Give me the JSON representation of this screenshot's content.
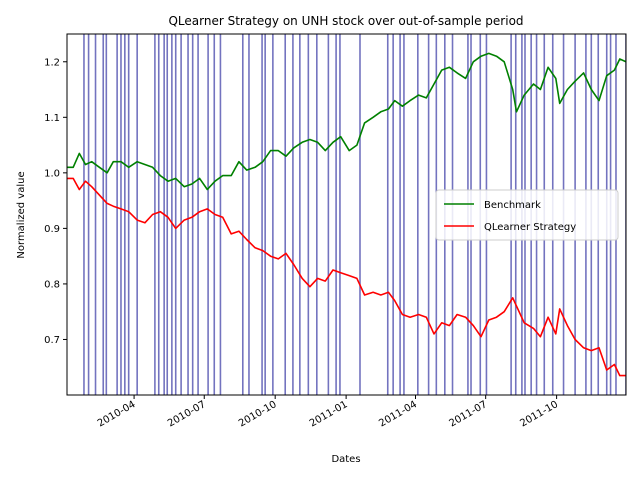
{
  "chart_data": {
    "type": "line",
    "title": "QLearner Strategy on UNH stock over out-of-sample period",
    "xlabel": "Dates",
    "ylabel": "Normalized value",
    "xlim": [
      "2010-01-04",
      "2011-12-30"
    ],
    "ylim": [
      0.6,
      1.25
    ],
    "x_ticks": [
      "2010-04",
      "2010-07",
      "2010-10",
      "2011-01",
      "2011-04",
      "2011-07",
      "2011-10"
    ],
    "y_ticks": [
      0.7,
      0.8,
      0.9,
      1.0,
      1.1,
      1.2
    ],
    "y_tick_labels": [
      "0.7",
      "0.8",
      "0.9",
      "1.0",
      "1.1",
      "1.2"
    ],
    "grid": false,
    "legend_position": "center-right",
    "series": [
      {
        "name": "Benchmark",
        "color": "#008000",
        "points": [
          [
            "2010-01-04",
            1.01
          ],
          [
            "2010-01-12",
            1.01
          ],
          [
            "2010-01-20",
            1.035
          ],
          [
            "2010-01-28",
            1.015
          ],
          [
            "2010-02-05",
            1.02
          ],
          [
            "2010-02-15",
            1.01
          ],
          [
            "2010-02-25",
            1.0
          ],
          [
            "2010-03-05",
            1.02
          ],
          [
            "2010-03-15",
            1.02
          ],
          [
            "2010-03-25",
            1.01
          ],
          [
            "2010-04-05",
            1.02
          ],
          [
            "2010-04-15",
            1.015
          ],
          [
            "2010-04-25",
            1.01
          ],
          [
            "2010-05-05",
            0.995
          ],
          [
            "2010-05-15",
            0.985
          ],
          [
            "2010-05-25",
            0.99
          ],
          [
            "2010-06-05",
            0.975
          ],
          [
            "2010-06-15",
            0.98
          ],
          [
            "2010-06-25",
            0.99
          ],
          [
            "2010-07-05",
            0.97
          ],
          [
            "2010-07-15",
            0.985
          ],
          [
            "2010-07-25",
            0.995
          ],
          [
            "2010-08-05",
            0.995
          ],
          [
            "2010-08-15",
            1.02
          ],
          [
            "2010-08-25",
            1.005
          ],
          [
            "2010-09-05",
            1.01
          ],
          [
            "2010-09-15",
            1.02
          ],
          [
            "2010-09-25",
            1.04
          ],
          [
            "2010-10-05",
            1.04
          ],
          [
            "2010-10-15",
            1.03
          ],
          [
            "2010-10-25",
            1.045
          ],
          [
            "2010-11-05",
            1.055
          ],
          [
            "2010-11-15",
            1.06
          ],
          [
            "2010-11-25",
            1.055
          ],
          [
            "2010-12-05",
            1.04
          ],
          [
            "2010-12-15",
            1.055
          ],
          [
            "2010-12-25",
            1.065
          ],
          [
            "2011-01-05",
            1.04
          ],
          [
            "2011-01-15",
            1.05
          ],
          [
            "2011-01-25",
            1.09
          ],
          [
            "2011-02-05",
            1.1
          ],
          [
            "2011-02-15",
            1.11
          ],
          [
            "2011-02-25",
            1.115
          ],
          [
            "2011-03-05",
            1.13
          ],
          [
            "2011-03-15",
            1.12
          ],
          [
            "2011-03-25",
            1.13
          ],
          [
            "2011-04-05",
            1.14
          ],
          [
            "2011-04-15",
            1.135
          ],
          [
            "2011-04-25",
            1.16
          ],
          [
            "2011-05-05",
            1.185
          ],
          [
            "2011-05-15",
            1.19
          ],
          [
            "2011-05-25",
            1.18
          ],
          [
            "2011-06-05",
            1.17
          ],
          [
            "2011-06-15",
            1.2
          ],
          [
            "2011-06-25",
            1.21
          ],
          [
            "2011-07-05",
            1.215
          ],
          [
            "2011-07-15",
            1.21
          ],
          [
            "2011-07-25",
            1.2
          ],
          [
            "2011-08-05",
            1.15
          ],
          [
            "2011-08-10",
            1.11
          ],
          [
            "2011-08-20",
            1.14
          ],
          [
            "2011-09-01",
            1.16
          ],
          [
            "2011-09-10",
            1.15
          ],
          [
            "2011-09-20",
            1.19
          ],
          [
            "2011-09-30",
            1.17
          ],
          [
            "2011-10-05",
            1.125
          ],
          [
            "2011-10-15",
            1.15
          ],
          [
            "2011-10-25",
            1.165
          ],
          [
            "2011-11-05",
            1.18
          ],
          [
            "2011-11-15",
            1.15
          ],
          [
            "2011-11-25",
            1.13
          ],
          [
            "2011-12-05",
            1.175
          ],
          [
            "2011-12-15",
            1.185
          ],
          [
            "2011-12-22",
            1.205
          ],
          [
            "2011-12-30",
            1.2
          ]
        ]
      },
      {
        "name": "QLearner Strategy",
        "color": "#ff0000",
        "points": [
          [
            "2010-01-04",
            0.99
          ],
          [
            "2010-01-12",
            0.99
          ],
          [
            "2010-01-20",
            0.97
          ],
          [
            "2010-01-28",
            0.985
          ],
          [
            "2010-02-05",
            0.975
          ],
          [
            "2010-02-15",
            0.96
          ],
          [
            "2010-02-25",
            0.945
          ],
          [
            "2010-03-05",
            0.94
          ],
          [
            "2010-03-15",
            0.935
          ],
          [
            "2010-03-25",
            0.93
          ],
          [
            "2010-04-05",
            0.915
          ],
          [
            "2010-04-15",
            0.91
          ],
          [
            "2010-04-25",
            0.925
          ],
          [
            "2010-05-05",
            0.93
          ],
          [
            "2010-05-15",
            0.92
          ],
          [
            "2010-05-25",
            0.9
          ],
          [
            "2010-06-05",
            0.915
          ],
          [
            "2010-06-15",
            0.92
          ],
          [
            "2010-06-25",
            0.93
          ],
          [
            "2010-07-05",
            0.935
          ],
          [
            "2010-07-15",
            0.925
          ],
          [
            "2010-07-25",
            0.92
          ],
          [
            "2010-08-05",
            0.89
          ],
          [
            "2010-08-15",
            0.895
          ],
          [
            "2010-08-25",
            0.88
          ],
          [
            "2010-09-05",
            0.865
          ],
          [
            "2010-09-15",
            0.86
          ],
          [
            "2010-09-25",
            0.85
          ],
          [
            "2010-10-05",
            0.845
          ],
          [
            "2010-10-15",
            0.855
          ],
          [
            "2010-10-25",
            0.835
          ],
          [
            "2010-11-05",
            0.81
          ],
          [
            "2010-11-15",
            0.795
          ],
          [
            "2010-11-25",
            0.81
          ],
          [
            "2010-12-05",
            0.805
          ],
          [
            "2010-12-15",
            0.825
          ],
          [
            "2010-12-25",
            0.82
          ],
          [
            "2011-01-05",
            0.815
          ],
          [
            "2011-01-15",
            0.81
          ],
          [
            "2011-01-25",
            0.78
          ],
          [
            "2011-02-05",
            0.785
          ],
          [
            "2011-02-15",
            0.78
          ],
          [
            "2011-02-25",
            0.785
          ],
          [
            "2011-03-05",
            0.77
          ],
          [
            "2011-03-15",
            0.745
          ],
          [
            "2011-03-25",
            0.74
          ],
          [
            "2011-04-05",
            0.745
          ],
          [
            "2011-04-15",
            0.74
          ],
          [
            "2011-04-25",
            0.71
          ],
          [
            "2011-05-05",
            0.73
          ],
          [
            "2011-05-15",
            0.725
          ],
          [
            "2011-05-25",
            0.745
          ],
          [
            "2011-06-05",
            0.74
          ],
          [
            "2011-06-15",
            0.725
          ],
          [
            "2011-06-25",
            0.705
          ],
          [
            "2011-07-05",
            0.735
          ],
          [
            "2011-07-15",
            0.74
          ],
          [
            "2011-07-25",
            0.75
          ],
          [
            "2011-08-05",
            0.775
          ],
          [
            "2011-08-10",
            0.76
          ],
          [
            "2011-08-20",
            0.73
          ],
          [
            "2011-09-01",
            0.72
          ],
          [
            "2011-09-10",
            0.705
          ],
          [
            "2011-09-20",
            0.74
          ],
          [
            "2011-09-30",
            0.71
          ],
          [
            "2011-10-05",
            0.755
          ],
          [
            "2011-10-15",
            0.725
          ],
          [
            "2011-10-25",
            0.7
          ],
          [
            "2011-11-05",
            0.685
          ],
          [
            "2011-11-15",
            0.68
          ],
          [
            "2011-11-25",
            0.685
          ],
          [
            "2011-12-05",
            0.645
          ],
          [
            "2011-12-15",
            0.655
          ],
          [
            "2011-12-22",
            0.635
          ],
          [
            "2011-12-30",
            0.635
          ]
        ]
      }
    ],
    "trade_lines": {
      "color": "#00008b",
      "dates": [
        "2010-01-26",
        "2010-02-01",
        "2010-02-10",
        "2010-02-20",
        "2010-02-24",
        "2010-03-10",
        "2010-03-15",
        "2010-03-20",
        "2010-03-25",
        "2010-04-05",
        "2010-04-28",
        "2010-05-03",
        "2010-05-10",
        "2010-05-14",
        "2010-05-20",
        "2010-05-25",
        "2010-06-01",
        "2010-06-10",
        "2010-06-16",
        "2010-06-23",
        "2010-07-06",
        "2010-07-14",
        "2010-07-22",
        "2010-08-20",
        "2010-08-28",
        "2010-09-14",
        "2010-09-18",
        "2010-09-28",
        "2010-10-14",
        "2010-10-24",
        "2010-11-02",
        "2010-11-13",
        "2010-11-24",
        "2010-12-09",
        "2010-12-19",
        "2010-12-24",
        "2011-01-19",
        "2011-02-24",
        "2011-03-03",
        "2011-03-12",
        "2011-03-17",
        "2011-04-04",
        "2011-04-18",
        "2011-04-28",
        "2011-05-09",
        "2011-05-19",
        "2011-06-08",
        "2011-06-12",
        "2011-06-24",
        "2011-07-02",
        "2011-08-03",
        "2011-08-09",
        "2011-08-17",
        "2011-08-21",
        "2011-08-29",
        "2011-09-05",
        "2011-09-15",
        "2011-09-26",
        "2011-10-10",
        "2011-10-25",
        "2011-11-08",
        "2011-11-15",
        "2011-11-24",
        "2011-12-05",
        "2011-12-10",
        "2011-12-17",
        "2011-12-30"
      ]
    }
  }
}
